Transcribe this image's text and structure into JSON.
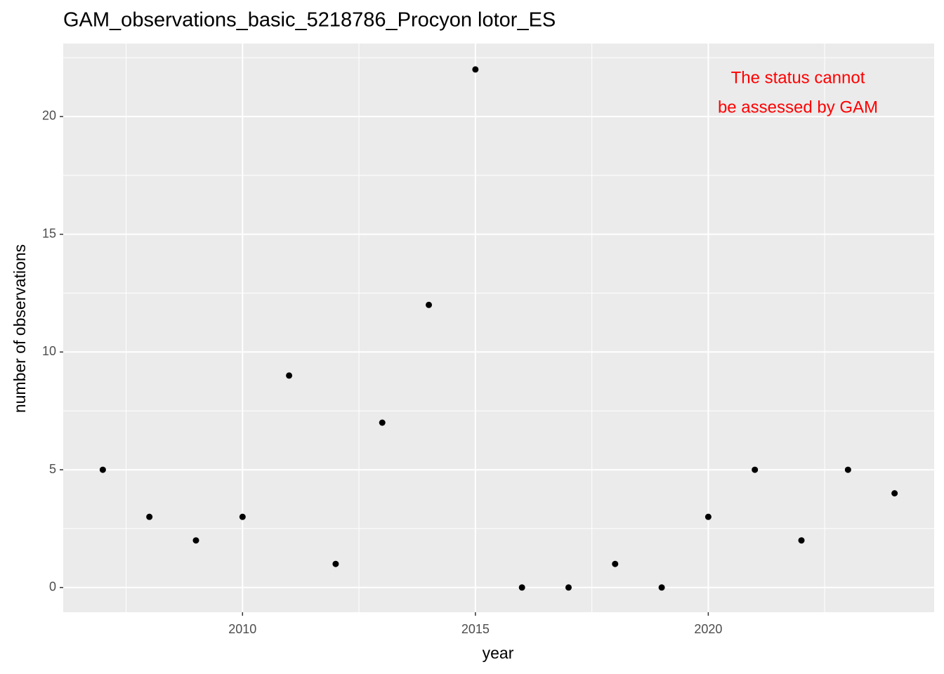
{
  "chart_data": {
    "type": "scatter",
    "title": "GAM_observations_basic_5218786_Procyon lotor_ES",
    "x_label": "year",
    "y_label": "number of observations",
    "annotation": [
      "The status cannot",
      "be assessed by GAM"
    ],
    "annotation_color": "#ff0000",
    "x": [
      2007,
      2008,
      2009,
      2010,
      2011,
      2012,
      2013,
      2014,
      2015,
      2016,
      2017,
      2018,
      2019,
      2020,
      2021,
      2022,
      2023,
      2024
    ],
    "values": [
      5,
      3,
      2,
      3,
      9,
      1,
      7,
      12,
      22,
      0,
      0,
      1,
      0,
      3,
      5,
      2,
      5,
      4
    ],
    "color": "#000000",
    "xlim": [
      2006.15,
      2024.85
    ],
    "ylim": [
      -1.05,
      23.1
    ],
    "xticks": [
      2010,
      2015,
      2020
    ],
    "yticks": [
      0,
      5,
      10,
      15,
      20
    ],
    "grid": true
  }
}
